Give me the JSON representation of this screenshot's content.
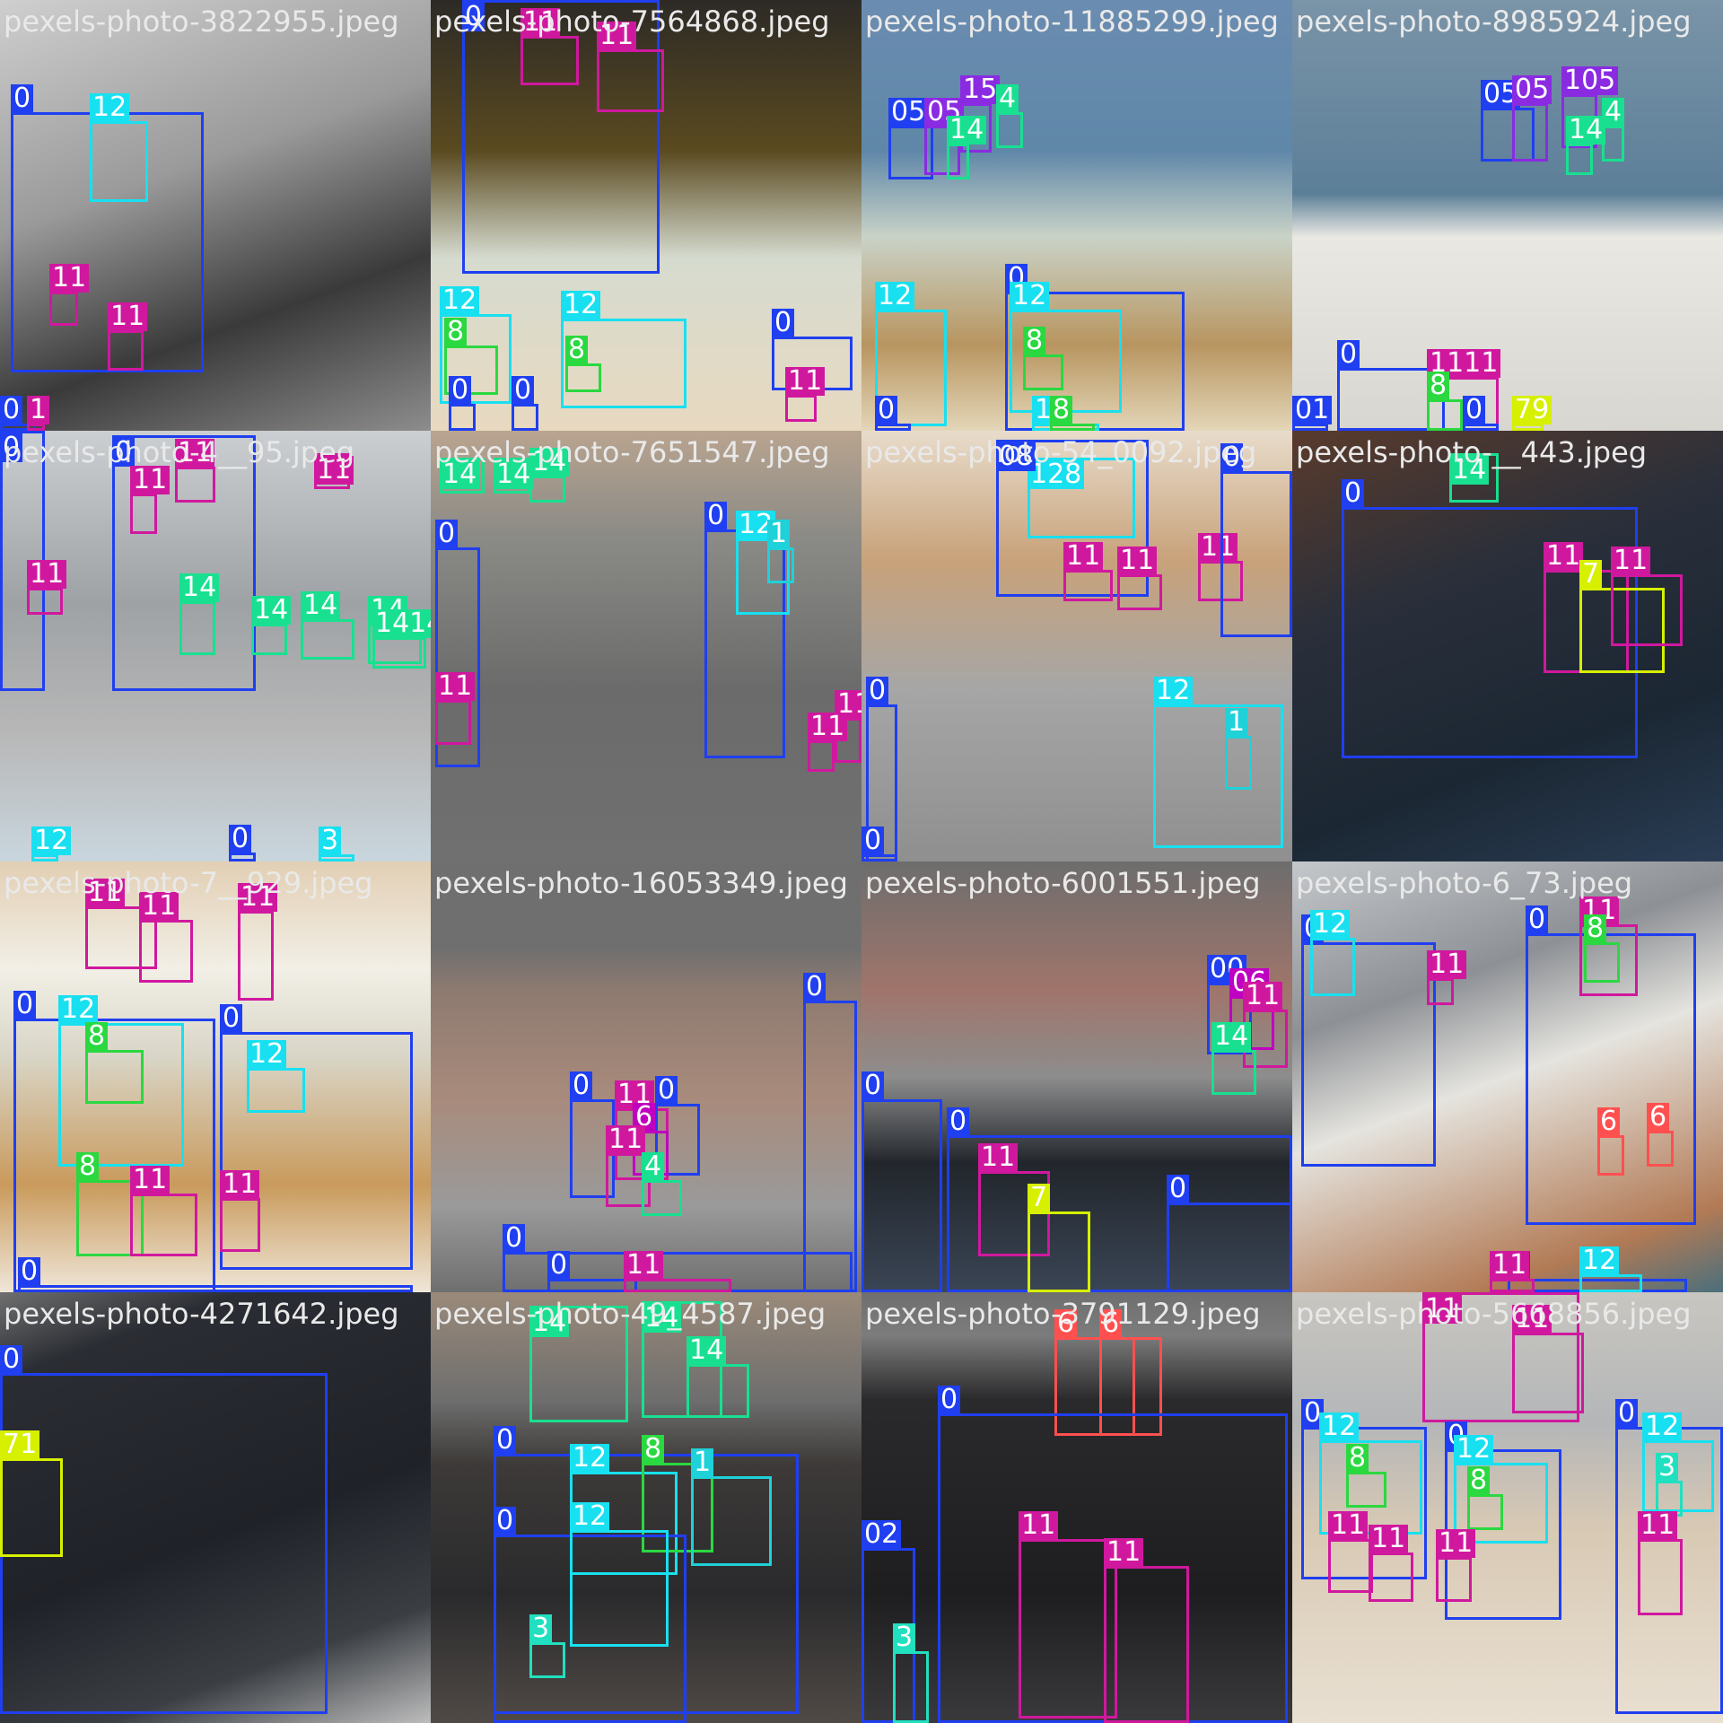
{
  "class_colors": {
    "0": "#1f3ff0",
    "1": "#1fd1d8",
    "3": "#20e0c0",
    "5": "#8a2be2",
    "6": "#ff5050",
    "7": "#d6f000",
    "8": "#2ad840",
    "9": "#c000c0",
    "11": "#d0189e",
    "12": "#18e0f0",
    "14": "#18e090"
  },
  "tiles": [
    {
      "title": "pexels-photo-3822955.jpeg",
      "bg": "linear-gradient(160deg,#cfcfcf 0%,#9a9a9a 40%,#3a3a3a 70%,#8d8d8d 100%)",
      "boxes": [
        {
          "label": "0",
          "cls": "0"
        },
        {
          "label": "12",
          "cls": "12"
        },
        {
          "label": "11",
          "cls": "11"
        },
        {
          "label": "11",
          "cls": "11"
        },
        {
          "label": "0",
          "cls": "0"
        },
        {
          "label": "1",
          "cls": "11"
        }
      ]
    },
    {
      "title": "pexels-photo-7564868.jpeg",
      "bg": "linear-gradient(180deg,#2d2a26 0%,#5a4a20 35%,#d6dbcf 60%,#e8d9c0 100%)",
      "boxes": [
        {
          "label": "0",
          "cls": "0"
        },
        {
          "label": "11",
          "cls": "11"
        },
        {
          "label": "11",
          "cls": "11"
        },
        {
          "label": "12",
          "cls": "12"
        },
        {
          "label": "8",
          "cls": "8"
        },
        {
          "label": "12",
          "cls": "12"
        },
        {
          "label": "8",
          "cls": "8"
        },
        {
          "label": "0",
          "cls": "0"
        },
        {
          "label": "11",
          "cls": "11"
        },
        {
          "label": "0",
          "cls": "0"
        },
        {
          "label": "0",
          "cls": "0"
        }
      ]
    },
    {
      "title": "pexels-photo-11885299.jpeg",
      "bg": "linear-gradient(180deg,#6a8cb0 0%,#5f87a8 35%,#c9d3c7 55%,#b89560 80%,#e3d6b8 100%)",
      "boxes": [
        {
          "label": "05",
          "cls": "0"
        },
        {
          "label": "05",
          "cls": "5"
        },
        {
          "label": "15",
          "cls": "5"
        },
        {
          "label": "4",
          "cls": "14"
        },
        {
          "label": "14",
          "cls": "14"
        },
        {
          "label": "12",
          "cls": "12"
        },
        {
          "label": "0",
          "cls": "0"
        },
        {
          "label": "12",
          "cls": "12"
        },
        {
          "label": "8",
          "cls": "8"
        },
        {
          "label": "0",
          "cls": "0"
        },
        {
          "label": "12",
          "cls": "12"
        },
        {
          "label": "8",
          "cls": "8"
        }
      ]
    },
    {
      "title": "pexels-photo-8985924.jpeg",
      "bg": "linear-gradient(180deg,#7a94a8 0%,#5c7f98 45%,#e9e8e2 55%,#d8d6d0 100%)",
      "boxes": [
        {
          "label": "05",
          "cls": "0"
        },
        {
          "label": "05",
          "cls": "5"
        },
        {
          "label": "105",
          "cls": "5"
        },
        {
          "label": "14",
          "cls": "14"
        },
        {
          "label": "4",
          "cls": "14"
        },
        {
          "label": "0",
          "cls": "0"
        },
        {
          "label": "1111",
          "cls": "11"
        },
        {
          "label": "8",
          "cls": "8"
        },
        {
          "label": "01",
          "cls": "0"
        },
        {
          "label": "0",
          "cls": "0"
        },
        {
          "label": "79",
          "cls": "7"
        }
      ]
    },
    {
      "title": "pexels-photo-4__95.jpeg",
      "bg": "linear-gradient(180deg,#cbcfd2 0%,#9ea2a5 40%,#b7b7b7 70%,#c9d6de 100%)",
      "boxes": [
        {
          "label": "0",
          "cls": "0"
        },
        {
          "label": "0",
          "cls": "0"
        },
        {
          "label": "11",
          "cls": "11"
        },
        {
          "label": "11",
          "cls": "11"
        },
        {
          "label": "11",
          "cls": "11"
        },
        {
          "label": "11",
          "cls": "11"
        },
        {
          "label": "14",
          "cls": "14"
        },
        {
          "label": "14",
          "cls": "14"
        },
        {
          "label": "14",
          "cls": "14"
        },
        {
          "label": "14",
          "cls": "14"
        },
        {
          "label": "1414",
          "cls": "14"
        },
        {
          "label": "0",
          "cls": "0"
        },
        {
          "label": "3",
          "cls": "12"
        },
        {
          "label": "12",
          "cls": "12"
        }
      ]
    },
    {
      "title": "pexels-photo-7651547.jpeg",
      "bg": "linear-gradient(180deg,#b9a48f 0%,#8a8a86 25%,#6b6b6b 60%,#707070 100%)",
      "boxes": [
        {
          "label": "14",
          "cls": "14"
        },
        {
          "label": "14",
          "cls": "14"
        },
        {
          "label": "14",
          "cls": "14"
        },
        {
          "label": "0",
          "cls": "0"
        },
        {
          "label": "0",
          "cls": "0"
        },
        {
          "label": "12",
          "cls": "12"
        },
        {
          "label": "1",
          "cls": "1"
        },
        {
          "label": "11",
          "cls": "11"
        },
        {
          "label": "11",
          "cls": "11"
        },
        {
          "label": "11",
          "cls": "11"
        }
      ]
    },
    {
      "title": "pexels-photo-54_0092.jpeg",
      "bg": "linear-gradient(180deg,#e8dccb 0%,#c8a27a 30%,#a6a6a6 60%,#8f8f8f 100%)",
      "boxes": [
        {
          "label": "128",
          "cls": "12"
        },
        {
          "label": "08",
          "cls": "0"
        },
        {
          "label": "11",
          "cls": "11"
        },
        {
          "label": "11",
          "cls": "11"
        },
        {
          "label": "11",
          "cls": "11"
        },
        {
          "label": "0",
          "cls": "0"
        },
        {
          "label": "0",
          "cls": "0"
        },
        {
          "label": "12",
          "cls": "12"
        },
        {
          "label": "1",
          "cls": "1"
        },
        {
          "label": "0",
          "cls": "0"
        }
      ]
    },
    {
      "title": "pexels-photo-__443.jpeg",
      "bg": "linear-gradient(160deg,#5a3b2c 0%,#2a2f3a 35%,#1b2733 70%,#2a3d55 100%)",
      "boxes": [
        {
          "label": "14",
          "cls": "14"
        },
        {
          "label": "0",
          "cls": "0"
        },
        {
          "label": "11",
          "cls": "11"
        },
        {
          "label": "7",
          "cls": "7"
        },
        {
          "label": "11",
          "cls": "11"
        }
      ]
    },
    {
      "title": "pexels-photo-7__929.jpeg",
      "bg": "linear-gradient(180deg,#e2cfb4 0%,#f2efe6 25%,#d9d6c8 45%,#c99a5c 75%,#efe6d8 100%)",
      "boxes": [
        {
          "label": "11",
          "cls": "11"
        },
        {
          "label": "11",
          "cls": "11"
        },
        {
          "label": "0",
          "cls": "0"
        },
        {
          "label": "11",
          "cls": "11"
        },
        {
          "label": "0",
          "cls": "0"
        },
        {
          "label": "12",
          "cls": "12"
        },
        {
          "label": "8",
          "cls": "8"
        },
        {
          "label": "0",
          "cls": "0"
        },
        {
          "label": "12",
          "cls": "12"
        },
        {
          "label": "8",
          "cls": "8"
        },
        {
          "label": "11",
          "cls": "11"
        },
        {
          "label": "11",
          "cls": "11"
        },
        {
          "label": "11",
          "cls": "11"
        }
      ]
    },
    {
      "title": "pexels-photo-16053349.jpeg",
      "bg": "linear-gradient(180deg,#6f6f6f 0%,#6f6f6f 20%,#8e7a70 30%,#a88b7c 55%,#9a9a9a 80%,#6f6f6f 100%)",
      "boxes": [
        {
          "label": "0",
          "cls": "0"
        },
        {
          "label": "11",
          "cls": "11"
        },
        {
          "label": "0",
          "cls": "0"
        },
        {
          "label": "6",
          "cls": "9"
        },
        {
          "label": "11",
          "cls": "11"
        },
        {
          "label": "4",
          "cls": "14"
        },
        {
          "label": "0",
          "cls": "0"
        },
        {
          "label": "0",
          "cls": "0"
        },
        {
          "label": "0",
          "cls": "0"
        },
        {
          "label": "11",
          "cls": "11"
        }
      ]
    },
    {
      "title": "pexels-photo-6001551.jpeg",
      "bg": "linear-gradient(180deg,#6d6d6d 0%,#a0756b 30%,#8d8d8d 50%,#22262c 70%,#3a4555 100%)",
      "boxes": [
        {
          "label": "00",
          "cls": "0"
        },
        {
          "label": "06",
          "cls": "9"
        },
        {
          "label": "11",
          "cls": "11"
        },
        {
          "label": "14",
          "cls": "14"
        },
        {
          "label": "0",
          "cls": "0"
        },
        {
          "label": "0",
          "cls": "0"
        },
        {
          "label": "11",
          "cls": "11"
        },
        {
          "label": "7",
          "cls": "7"
        },
        {
          "label": "0",
          "cls": "0"
        }
      ]
    },
    {
      "title": "pexels-photo-6_73.jpeg",
      "bg": "linear-gradient(160deg,#c4c8cb 0%,#8d9095 30%,#e5e4df 50%,#b27a55 85%,#4a6f7c 100%)",
      "boxes": [
        {
          "label": "0",
          "cls": "0"
        },
        {
          "label": "12",
          "cls": "12"
        },
        {
          "label": "11",
          "cls": "11"
        },
        {
          "label": "0",
          "cls": "0"
        },
        {
          "label": "11",
          "cls": "11"
        },
        {
          "label": "8",
          "cls": "8"
        },
        {
          "label": "6",
          "cls": "6"
        },
        {
          "label": "6",
          "cls": "6"
        },
        {
          "label": "0",
          "cls": "0"
        },
        {
          "label": "12",
          "cls": "12"
        },
        {
          "label": "11",
          "cls": "11"
        }
      ]
    },
    {
      "title": "pexels-photo-4271642.jpeg",
      "bg": "linear-gradient(160deg,#6f6f6f 0%,#2a2d33 15%,#1f2228 55%,#3b3f44 80%,#bdbdbd 100%)",
      "boxes": [
        {
          "label": "0",
          "cls": "0"
        },
        {
          "label": "71",
          "cls": "7"
        }
      ]
    },
    {
      "title": "pexels-photo-49_4587.jpeg",
      "bg": "linear-gradient(180deg,#9a8a7a 0%,#6e6e6e 25%,#3d3a38 40%,#2a2a2c 70%,#504a46 100%)",
      "boxes": [
        {
          "label": "14",
          "cls": "14"
        },
        {
          "label": "14",
          "cls": "14"
        },
        {
          "label": "14",
          "cls": "14"
        },
        {
          "label": "0",
          "cls": "0"
        },
        {
          "label": "12",
          "cls": "12"
        },
        {
          "label": "8",
          "cls": "8"
        },
        {
          "label": "1",
          "cls": "1"
        },
        {
          "label": "0",
          "cls": "0"
        },
        {
          "label": "12",
          "cls": "12"
        },
        {
          "label": "3",
          "cls": "3"
        }
      ]
    },
    {
      "title": "pexels-photo-3791129.jpeg",
      "bg": "linear-gradient(180deg,#6f6f6f 0%,#7c7c7c 10%,#2a2a2c 25%,#1e1e20 70%,#3a3a3c 100%)",
      "boxes": [
        {
          "label": "6",
          "cls": "6"
        },
        {
          "label": "6",
          "cls": "6"
        },
        {
          "label": "0",
          "cls": "0"
        },
        {
          "label": "11",
          "cls": "11"
        },
        {
          "label": "11",
          "cls": "11"
        },
        {
          "label": "02",
          "cls": "0"
        },
        {
          "label": "3",
          "cls": "3"
        }
      ]
    },
    {
      "title": "pexels-photo-5668856.jpeg",
      "bg": "linear-gradient(180deg,#c8c6c0 0%,#b4b6b8 30%,#d8c9b4 55%,#e9e0d2 100%)",
      "boxes": [
        {
          "label": "11",
          "cls": "11"
        },
        {
          "label": "11",
          "cls": "11"
        },
        {
          "label": "0",
          "cls": "0"
        },
        {
          "label": "12",
          "cls": "12"
        },
        {
          "label": "8",
          "cls": "8"
        },
        {
          "label": "0",
          "cls": "0"
        },
        {
          "label": "12",
          "cls": "12"
        },
        {
          "label": "8",
          "cls": "8"
        },
        {
          "label": "11",
          "cls": "11"
        },
        {
          "label": "11",
          "cls": "11"
        },
        {
          "label": "11",
          "cls": "11"
        },
        {
          "label": "0",
          "cls": "0"
        },
        {
          "label": "12",
          "cls": "12"
        },
        {
          "label": "3",
          "cls": "3"
        },
        {
          "label": "11",
          "cls": "11"
        }
      ]
    }
  ]
}
